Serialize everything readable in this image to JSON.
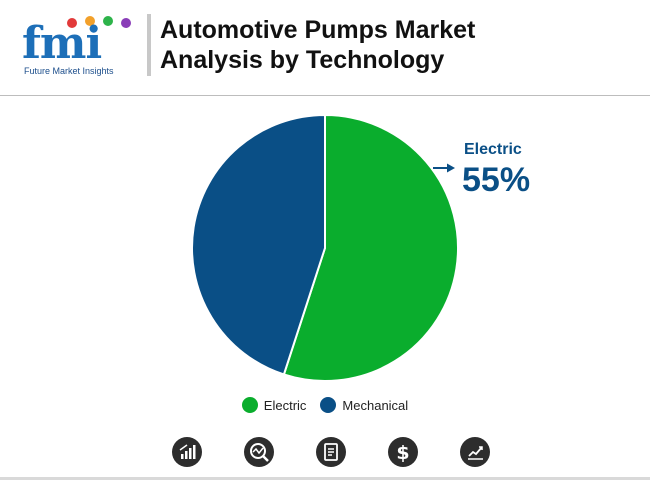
{
  "header": {
    "logo_text": "fmi",
    "logo_subtitle": "Future Market Insights",
    "title_line1": "Automotive Pumps Market",
    "title_line2": "Analysis by Technology"
  },
  "chart_data": {
    "type": "pie",
    "title": "Automotive Pumps Market Analysis by Technology",
    "categories": [
      "Electric",
      "Mechanical"
    ],
    "values": [
      55,
      45
    ],
    "colors": [
      "#0aad2d",
      "#0a4f86"
    ],
    "legend_position": "bottom",
    "callout": {
      "label": "Electric",
      "value_text": "55%"
    }
  },
  "icons": [
    "bar-chart-icon",
    "magnifier-chart-icon",
    "document-icon",
    "dollar-icon",
    "line-chart-icon"
  ]
}
